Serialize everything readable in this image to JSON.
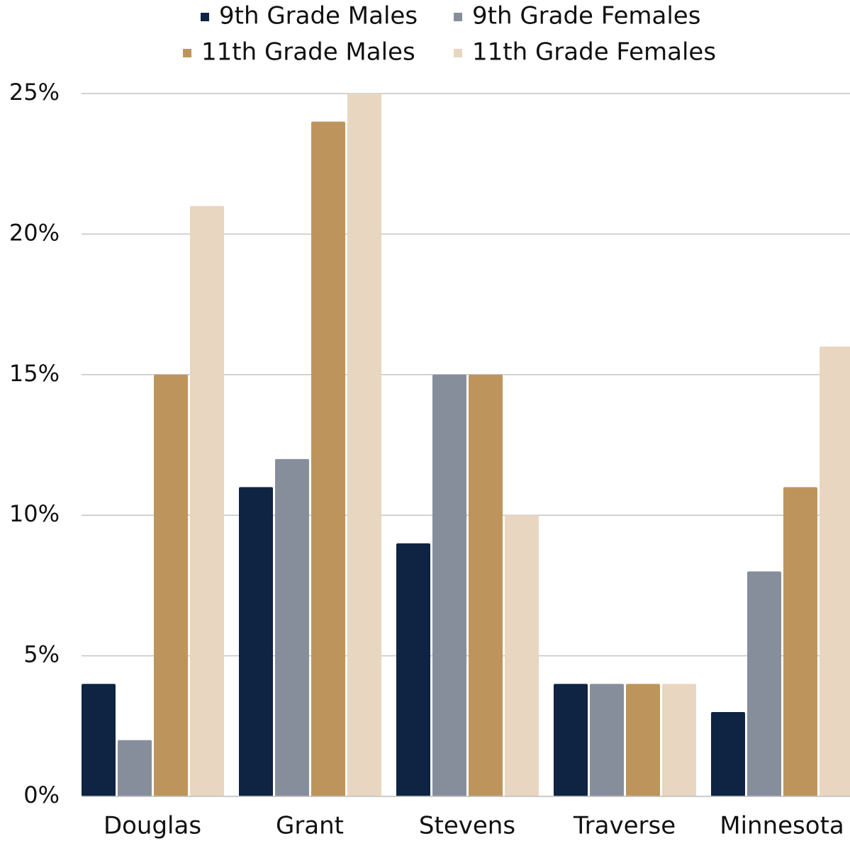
{
  "chart_data": {
    "type": "bar",
    "categories": [
      "Douglas",
      "Grant",
      "Stevens",
      "Traverse",
      "Minnesota"
    ],
    "series": [
      {
        "name": "9th Grade Males",
        "color": "#0f2342",
        "values": [
          4,
          11,
          9,
          4,
          3
        ]
      },
      {
        "name": "9th Grade Females",
        "color": "#878e9b",
        "values": [
          2,
          12,
          15,
          4,
          8
        ]
      },
      {
        "name": "11th Grade Males",
        "color": "#bd955c",
        "values": [
          15,
          24,
          15,
          4,
          11
        ]
      },
      {
        "name": "11th Grade Females",
        "color": "#e8d6c0",
        "values": [
          21,
          25,
          10,
          4,
          16
        ]
      }
    ],
    "ylim": [
      0,
      25
    ],
    "yticks": [
      {
        "value": 0,
        "label": "0%"
      },
      {
        "value": 5,
        "label": "5%"
      },
      {
        "value": 10,
        "label": "10%"
      },
      {
        "value": 15,
        "label": "15%"
      },
      {
        "value": 20,
        "label": "20%"
      },
      {
        "value": 25,
        "label": "25%"
      }
    ],
    "grid": true,
    "legend": "top"
  }
}
